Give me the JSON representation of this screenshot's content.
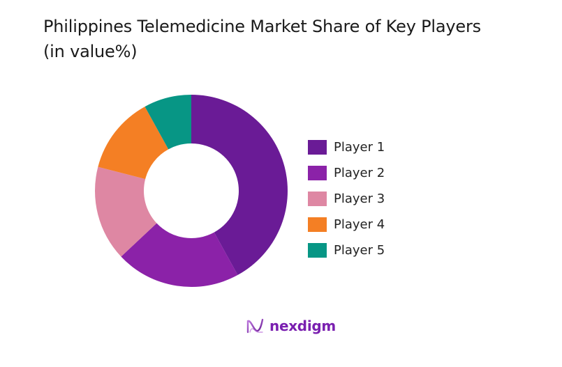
{
  "title_line1": "Philippines Telemedicine Market Share of Key Players",
  "title_line2": "(in value%)",
  "legend": [
    {
      "label": "Player 1",
      "color": "#6a1b96"
    },
    {
      "label": "Player 2",
      "color": "#8b22a8"
    },
    {
      "label": "Player 3",
      "color": "#de87a3"
    },
    {
      "label": "Player 4",
      "color": "#f47f24"
    },
    {
      "label": "Player 5",
      "color": "#079685"
    }
  ],
  "logo": {
    "text": "nexdigm"
  },
  "chart_data": {
    "type": "pie",
    "subtype": "donut",
    "title": "Philippines Telemedicine Market Share of Key Players (in value%)",
    "categories": [
      "Player 1",
      "Player 2",
      "Player 3",
      "Player 4",
      "Player 5"
    ],
    "values": [
      42,
      21,
      16,
      13,
      8
    ],
    "colors": [
      "#6a1b96",
      "#8b22a8",
      "#de87a3",
      "#f47f24",
      "#079685"
    ],
    "legend_position": "right",
    "unit": "%"
  }
}
